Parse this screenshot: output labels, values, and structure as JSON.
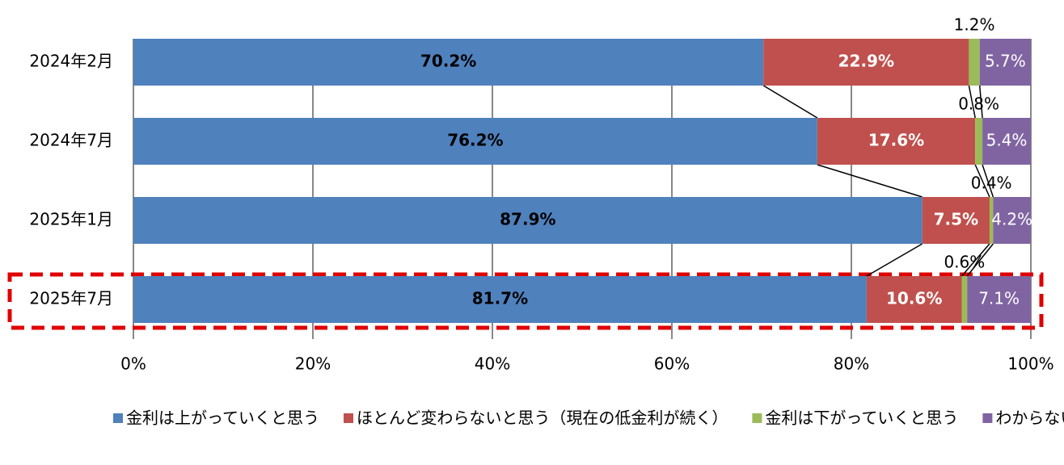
{
  "chart_data": {
    "type": "stacked-bar-horizontal",
    "categories": [
      "2024年2月",
      "2024年7月",
      "2025年1月",
      "2025年7月"
    ],
    "series": [
      {
        "name": "金利は上がっていくと思う",
        "color": "#4f81bd",
        "values": [
          70.2,
          76.2,
          87.9,
          81.7
        ],
        "value_labels": [
          "70.2%",
          "76.2%",
          "87.9%",
          "81.7%"
        ]
      },
      {
        "name": "ほとんど変わらないと思う（現在の低金利が続く）",
        "color": "#c0504d",
        "values": [
          22.9,
          17.6,
          7.5,
          10.6
        ],
        "value_labels": [
          "22.9%",
          "17.6%",
          "7.5%",
          "10.6%"
        ]
      },
      {
        "name": "金利は下がっていくと思う",
        "color": "#9bbb59",
        "values": [
          1.2,
          0.8,
          0.4,
          0.6
        ],
        "value_labels": [
          "1.2%",
          "0.8%",
          "0.4%",
          "0.6%"
        ]
      },
      {
        "name": "わからない",
        "color": "#8064a2",
        "values": [
          5.7,
          5.4,
          4.2,
          7.1
        ],
        "value_labels": [
          "5.7%",
          "5.4%",
          "4.2%",
          "7.1%"
        ]
      }
    ],
    "xlim": [
      0,
      100
    ],
    "xticks": [
      {
        "value": 0,
        "label": "0%"
      },
      {
        "value": 20,
        "label": "20%"
      },
      {
        "value": 40,
        "label": "40%"
      },
      {
        "value": 60,
        "label": "60%"
      },
      {
        "value": 80,
        "label": "80%"
      },
      {
        "value": 100,
        "label": "100%"
      }
    ],
    "grid": true,
    "legend": "bottom"
  }
}
